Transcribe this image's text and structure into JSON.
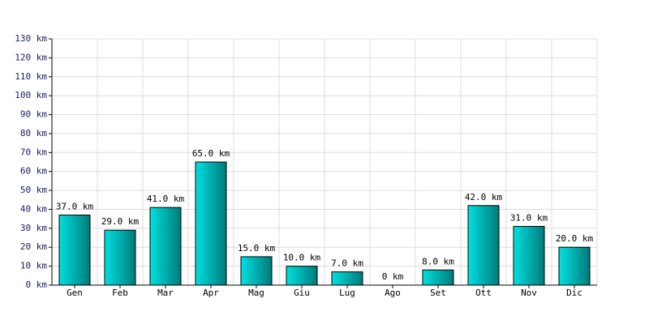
{
  "chart_data": {
    "type": "bar",
    "categories": [
      "Gen",
      "Feb",
      "Mar",
      "Apr",
      "Mag",
      "Giu",
      "Lug",
      "Ago",
      "Set",
      "Ott",
      "Nov",
      "Dic"
    ],
    "values": [
      37,
      29,
      41,
      65,
      15,
      10,
      7,
      0,
      8,
      42,
      31,
      20
    ],
    "value_labels": [
      "37.0 km",
      "29.0 km",
      "41.0 km",
      "65.0 km",
      "15.0 km",
      "10.0 km",
      "7.0 km",
      "0 km",
      "8.0 km",
      "42.0 km",
      "31.0 km",
      "20.0 km"
    ],
    "color": "#00e0e0",
    "ylim": [
      0,
      130
    ],
    "yticks": [
      {
        "value": 0,
        "label": "0 km"
      },
      {
        "value": 10,
        "label": "10 km"
      },
      {
        "value": 20,
        "label": "20 km"
      },
      {
        "value": 30,
        "label": "30 km"
      },
      {
        "value": 40,
        "label": "40 km"
      },
      {
        "value": 50,
        "label": "50 km"
      },
      {
        "value": 60,
        "label": "60 km"
      },
      {
        "value": 70,
        "label": "70 km"
      },
      {
        "value": 80,
        "label": "80 km"
      },
      {
        "value": 90,
        "label": "90 km"
      },
      {
        "value": 100,
        "label": "100 km"
      },
      {
        "value": 110,
        "label": "110 km"
      },
      {
        "value": 120,
        "label": "120 km"
      },
      {
        "value": 130,
        "label": "130 km"
      }
    ],
    "grid": true
  }
}
